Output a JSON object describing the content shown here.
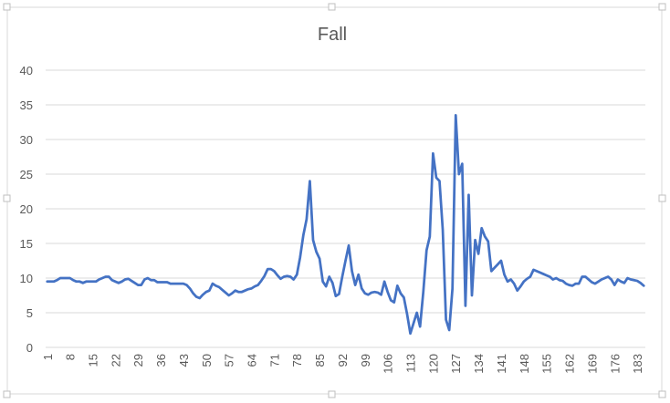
{
  "chart_data": {
    "type": "line",
    "title": "Fall",
    "categories": [
      1,
      null,
      null,
      null,
      null,
      null,
      null,
      8,
      null,
      null,
      null,
      null,
      null,
      null,
      15,
      null,
      null,
      null,
      null,
      null,
      null,
      22,
      null,
      null,
      null,
      null,
      null,
      null,
      29,
      null,
      null,
      null,
      null,
      null,
      null,
      36,
      null,
      null,
      null,
      null,
      null,
      null,
      43,
      null,
      null,
      null,
      null,
      null,
      null,
      50,
      null,
      null,
      null,
      null,
      null,
      null,
      57,
      null,
      null,
      null,
      null,
      null,
      null,
      64,
      null,
      null,
      null,
      null,
      null,
      null,
      71,
      null,
      null,
      null,
      null,
      null,
      null,
      78,
      null,
      null,
      null,
      null,
      null,
      null,
      85,
      null,
      null,
      null,
      null,
      null,
      null,
      92,
      null,
      null,
      null,
      null,
      null,
      null,
      99,
      null,
      null,
      null,
      null,
      null,
      null,
      106,
      null,
      null,
      null,
      null,
      null,
      null,
      113,
      null,
      null,
      null,
      null,
      null,
      null,
      120,
      null,
      null,
      null,
      null,
      null,
      null,
      127,
      null,
      null,
      null,
      null,
      null,
      null,
      134,
      null,
      null,
      null,
      null,
      null,
      null,
      141,
      null,
      null,
      null,
      null,
      null,
      null,
      148,
      null,
      null,
      null,
      null,
      null,
      null,
      155,
      null,
      null,
      null,
      null,
      null,
      null,
      162,
      null,
      null,
      null,
      null,
      null,
      null,
      169,
      null,
      null,
      null,
      null,
      null,
      null,
      176,
      null,
      null,
      null,
      null,
      null,
      null,
      183,
      null,
      null
    ],
    "values": [
      9.5,
      9.5,
      9.5,
      9.7,
      10,
      10,
      10,
      10,
      9.7,
      9.5,
      9.5,
      9.3,
      9.5,
      9.5,
      9.5,
      9.5,
      9.8,
      10,
      10.2,
      10.2,
      9.7,
      9.5,
      9.3,
      9.5,
      9.8,
      9.9,
      9.6,
      9.3,
      9,
      9,
      9.8,
      10,
      9.7,
      9.7,
      9.4,
      9.4,
      9.4,
      9.4,
      9.2,
      9.2,
      9.2,
      9.2,
      9.2,
      9,
      8.5,
      7.8,
      7.3,
      7.1,
      7.6,
      8,
      8.2,
      9.2,
      8.9,
      8.7,
      8.3,
      7.9,
      7.5,
      7.8,
      8.2,
      8,
      8,
      8.2,
      8.4,
      8.5,
      8.8,
      9,
      9.6,
      10.3,
      11.3,
      11.3,
      11,
      10.4,
      9.9,
      10.2,
      10.3,
      10.2,
      9.8,
      10.5,
      13,
      16.2,
      18.5,
      24,
      15.5,
      13.8,
      12.8,
      9.5,
      8.8,
      10.2,
      9.3,
      7.4,
      7.7,
      10.2,
      12.5,
      14.7,
      11,
      9,
      10.5,
      8.5,
      7.8,
      7.6,
      7.9,
      8,
      7.9,
      7.6,
      9.5,
      8,
      6.8,
      6.5,
      8.9,
      7.8,
      7.2,
      4.8,
      2,
      3.5,
      5,
      3,
      8,
      14,
      16,
      28,
      24.5,
      24,
      17,
      4,
      2.5,
      8.5,
      33.5,
      25,
      26.5,
      6,
      22,
      7.5,
      15.5,
      13.5,
      17.2,
      16,
      15.3,
      11,
      11.5,
      12,
      12.5,
      10.5,
      9.5,
      9.8,
      9.2,
      8.2,
      8.8,
      9.5,
      9.9,
      10.2,
      11.2,
      11,
      10.8,
      10.6,
      10.4,
      10.2,
      9.8,
      10,
      9.7,
      9.6,
      9.2,
      9,
      8.9,
      9.2,
      9.2,
      10.2,
      10.2,
      9.8,
      9.4,
      9.2,
      9.5,
      9.8,
      10,
      10.2,
      9.8,
      9,
      9.8,
      9.5,
      9.3,
      10,
      9.8,
      9.7,
      9.6,
      9.3,
      8.9
    ],
    "color": "#4472c4",
    "ylim": [
      0,
      40
    ],
    "yticks": [
      0,
      5,
      10,
      15,
      20,
      25,
      30,
      35,
      40
    ],
    "grid": true
  }
}
